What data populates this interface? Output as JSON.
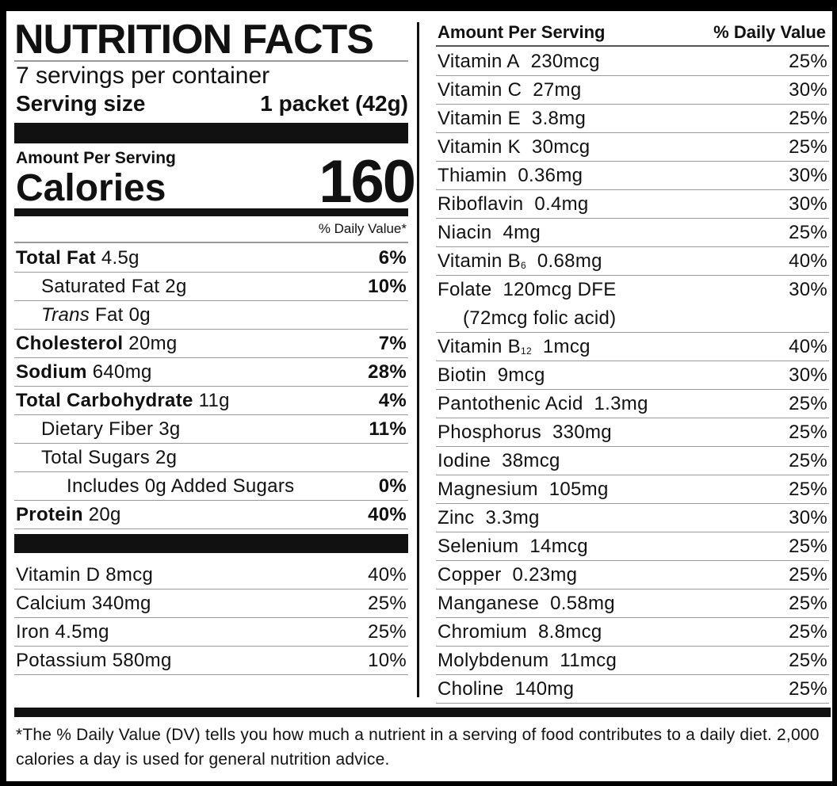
{
  "title": "NUTRITION FACTS",
  "servings": "7 servings per container",
  "serving_size_label": "Serving size",
  "serving_size": "1 packet (42g)",
  "amount_per_serving": "Amount Per Serving",
  "calories_label": "Calories",
  "calories": 160,
  "dv_header": "% Daily Value*",
  "nutrients": [
    {
      "name": "Total Fat",
      "amount": "4.5g",
      "dv": "6%",
      "bold": true,
      "indent": 0
    },
    {
      "name": "Saturated Fat",
      "amount": "2g",
      "dv": "10%",
      "indent": 1
    },
    {
      "italic": "Trans",
      "name": "Fat",
      "amount": "0g",
      "indent": 1
    },
    {
      "name": "Cholesterol",
      "amount": "20mg",
      "dv": "7%",
      "bold": true,
      "indent": 0
    },
    {
      "name": "Sodium",
      "amount": "640mg",
      "dv": "28%",
      "bold": true,
      "indent": 0
    },
    {
      "name": "Total Carbohydrate",
      "amount": "11g",
      "dv": "4%",
      "bold": true,
      "indent": 0
    },
    {
      "name": "Dietary Fiber",
      "amount": "3g",
      "dv": "11%",
      "indent": 1
    },
    {
      "name": "Total Sugars",
      "amount": "2g",
      "indent": 1
    },
    {
      "name": "Includes 0g Added Sugars",
      "dv": "0%",
      "indent": 2
    },
    {
      "name": "Protein",
      "amount": "20g",
      "dv": "40%",
      "bold": true,
      "indent": 0
    }
  ],
  "minerals": [
    {
      "name": "Vitamin D",
      "amount": "8mcg",
      "dv": "40%"
    },
    {
      "name": "Calcium",
      "amount": "340mg",
      "dv": "25%"
    },
    {
      "name": "Iron",
      "amount": "4.5mg",
      "dv": "25%"
    },
    {
      "name": "Potassium",
      "amount": "580mg",
      "dv": "10%"
    }
  ],
  "right_header": {
    "amount": "Amount Per Serving",
    "dv": "% Daily Value"
  },
  "vitamins": [
    {
      "name": "Vitamin A",
      "amount": "230mcg",
      "dv": "25%"
    },
    {
      "name": "Vitamin C",
      "amount": "27mg",
      "dv": "30%"
    },
    {
      "name": "Vitamin E",
      "amount": "3.8mg",
      "dv": "25%"
    },
    {
      "name": "Vitamin K",
      "amount": "30mcg",
      "dv": "25%"
    },
    {
      "name": "Thiamin",
      "amount": "0.36mg",
      "dv": "30%"
    },
    {
      "name": "Riboflavin",
      "amount": "0.4mg",
      "dv": "30%"
    },
    {
      "name": "Niacin",
      "amount": "4mg",
      "dv": "25%"
    },
    {
      "name": "Vitamin B",
      "sub": "6",
      "amount": "0.68mg",
      "dv": "40%"
    },
    {
      "name": "Folate",
      "amount": "120mcg DFE",
      "dv": "30%",
      "note": "(72mcg folic acid)"
    },
    {
      "name": "Vitamin B",
      "sub": "12",
      "amount": "1mcg",
      "dv": "40%"
    },
    {
      "name": "Biotin",
      "amount": "9mcg",
      "dv": "30%"
    },
    {
      "name": "Pantothenic Acid",
      "amount": "1.3mg",
      "dv": "25%"
    },
    {
      "name": "Phosphorus",
      "amount": "330mg",
      "dv": "25%"
    },
    {
      "name": "Iodine",
      "amount": "38mcg",
      "dv": "25%"
    },
    {
      "name": "Magnesium",
      "amount": "105mg",
      "dv": "25%"
    },
    {
      "name": "Zinc",
      "amount": "3.3mg",
      "dv": "30%"
    },
    {
      "name": "Selenium",
      "amount": "14mcg",
      "dv": "25%"
    },
    {
      "name": "Copper",
      "amount": "0.23mg",
      "dv": "25%"
    },
    {
      "name": "Manganese",
      "amount": "0.58mg",
      "dv": "25%"
    },
    {
      "name": "Chromium",
      "amount": "8.8mcg",
      "dv": "25%"
    },
    {
      "name": "Molybdenum",
      "amount": "11mcg",
      "dv": "25%"
    },
    {
      "name": "Choline",
      "amount": "140mg",
      "dv": "25%"
    }
  ],
  "footnote": "*The % Daily Value (DV) tells you how much a nutrient in a serving of food contributes to a daily diet. 2,000 calories a day is used for general nutrition advice."
}
